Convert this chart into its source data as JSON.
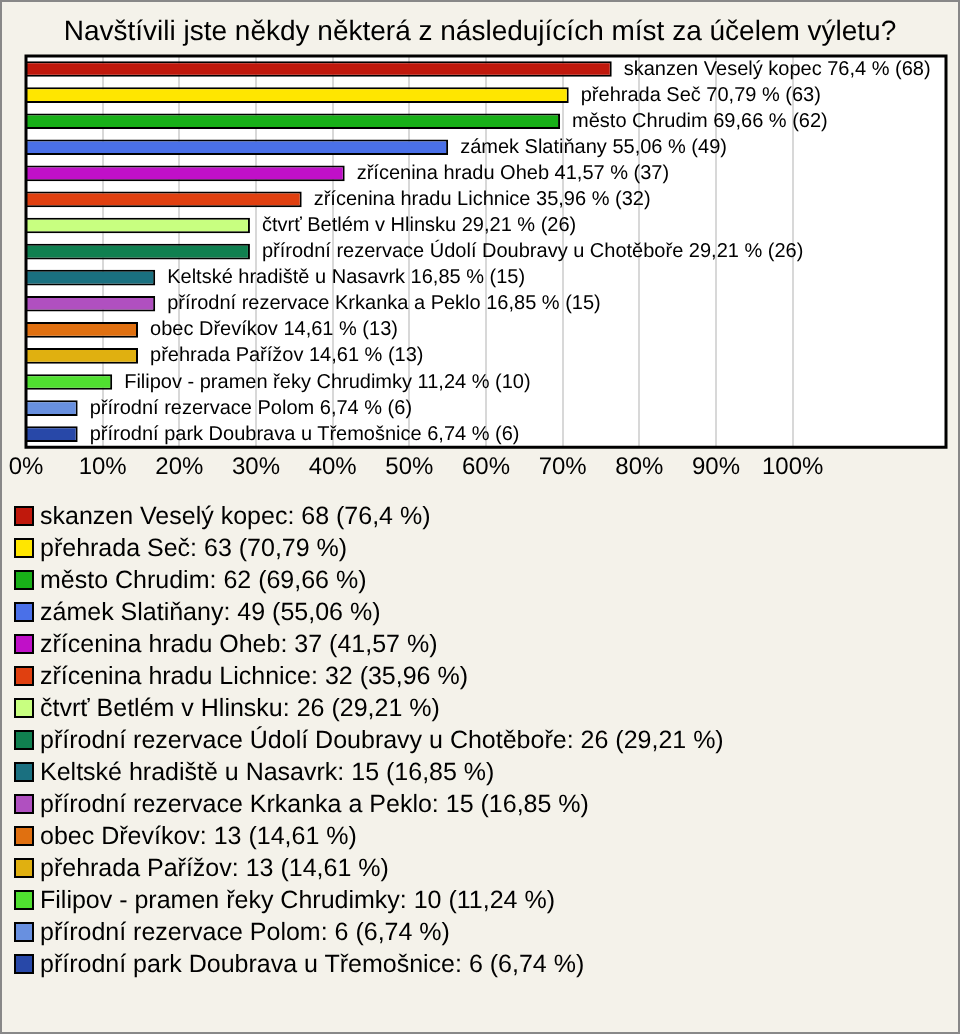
{
  "chart_data": {
    "type": "bar",
    "orientation": "horizontal",
    "title": "Navštívili jste někdy některá z následujících míst za účelem výletu?",
    "categories": [
      "skanzen Veselý kopec",
      "přehrada Seč",
      "město Chrudim",
      "zámek Slatiňany",
      "zřícenina hradu Oheb",
      "zřícenina hradu Lichnice",
      "čtvrť Betlém v Hlinsku",
      "přírodní rezervace Údolí Doubravy u Chotěboře",
      "Keltské hradiště u Nasavrk",
      "přírodní rezervace Krkanka a Peklo",
      "obec Dřevíkov",
      "přehrada Pařížov",
      "Filipov - pramen řeky Chrudimky",
      "přírodní rezervace Polom",
      "přírodní park Doubrava u Třemošnice"
    ],
    "values": [
      76.4,
      70.79,
      69.66,
      55.06,
      41.57,
      35.96,
      29.21,
      29.21,
      16.85,
      16.85,
      14.61,
      14.61,
      11.24,
      6.74,
      6.74
    ],
    "value_labels": [
      "76,4 % (68)",
      "70,79 % (63)",
      "69,66 % (62)",
      "55,06 % (49)",
      "41,57 % (37)",
      "35,96 % (32)",
      "29,21 % (26)",
      "29,21 % (26)",
      "16,85 % (15)",
      "16,85 % (15)",
      "14,61 % (13)",
      "14,61 % (13)",
      "11,24 % (10)",
      "6,74 % (6)",
      "6,74 % (6)"
    ],
    "colors": [
      "#c0180c",
      "#ffe600",
      "#18b018",
      "#4a70e8",
      "#c010c8",
      "#e04010",
      "#c8ff80",
      "#108050",
      "#1a7080",
      "#b050c0",
      "#e07010",
      "#e0b010",
      "#50e030",
      "#6890e0",
      "#2848a8"
    ],
    "xlim": [
      0,
      120
    ],
    "xticks": [
      {
        "value": 0,
        "label": "0%"
      },
      {
        "value": 10,
        "label": "10%"
      },
      {
        "value": 20,
        "label": "20%"
      },
      {
        "value": 30,
        "label": "30%"
      },
      {
        "value": 40,
        "label": "40%"
      },
      {
        "value": 50,
        "label": "50%"
      },
      {
        "value": 60,
        "label": "60%"
      },
      {
        "value": 70,
        "label": "70%"
      },
      {
        "value": 80,
        "label": "80%"
      },
      {
        "value": 90,
        "label": "90%"
      },
      {
        "value": 100,
        "label": "100%"
      }
    ],
    "grid": "x",
    "tick_labels": "x",
    "annotations": [
      "skanzen Veselý kopec: 68 (76,4 %)",
      "přehrada Seč: 63 (70,79 %)",
      "město Chrudim: 62 (69,66 %)",
      "zámek Slatiňany: 49 (55,06 %)",
      "zřícenina hradu Oheb: 37 (41,57 %)",
      "zřícenina hradu Lichnice: 32 (35,96 %)",
      "čtvrť Betlém v Hlinsku: 26 (29,21 %)",
      "přírodní rezervace Údolí Doubravy u Chotěboře: 26 (29,21 %)",
      "Keltské hradiště u Nasavrk: 15 (16,85 %)",
      "přírodní rezervace Krkanka a Peklo: 15 (16,85 %)",
      "obec Dřevíkov: 13 (14,61 %)",
      "přehrada Pařížov: 13 (14,61 %)",
      "Filipov - pramen řeky Chrudimky: 10 (11,24 %)",
      "přírodní rezervace Polom: 6 (6,74 %)",
      "přírodní park Doubrava u Třemošnice: 6 (6,74 %)"
    ]
  }
}
